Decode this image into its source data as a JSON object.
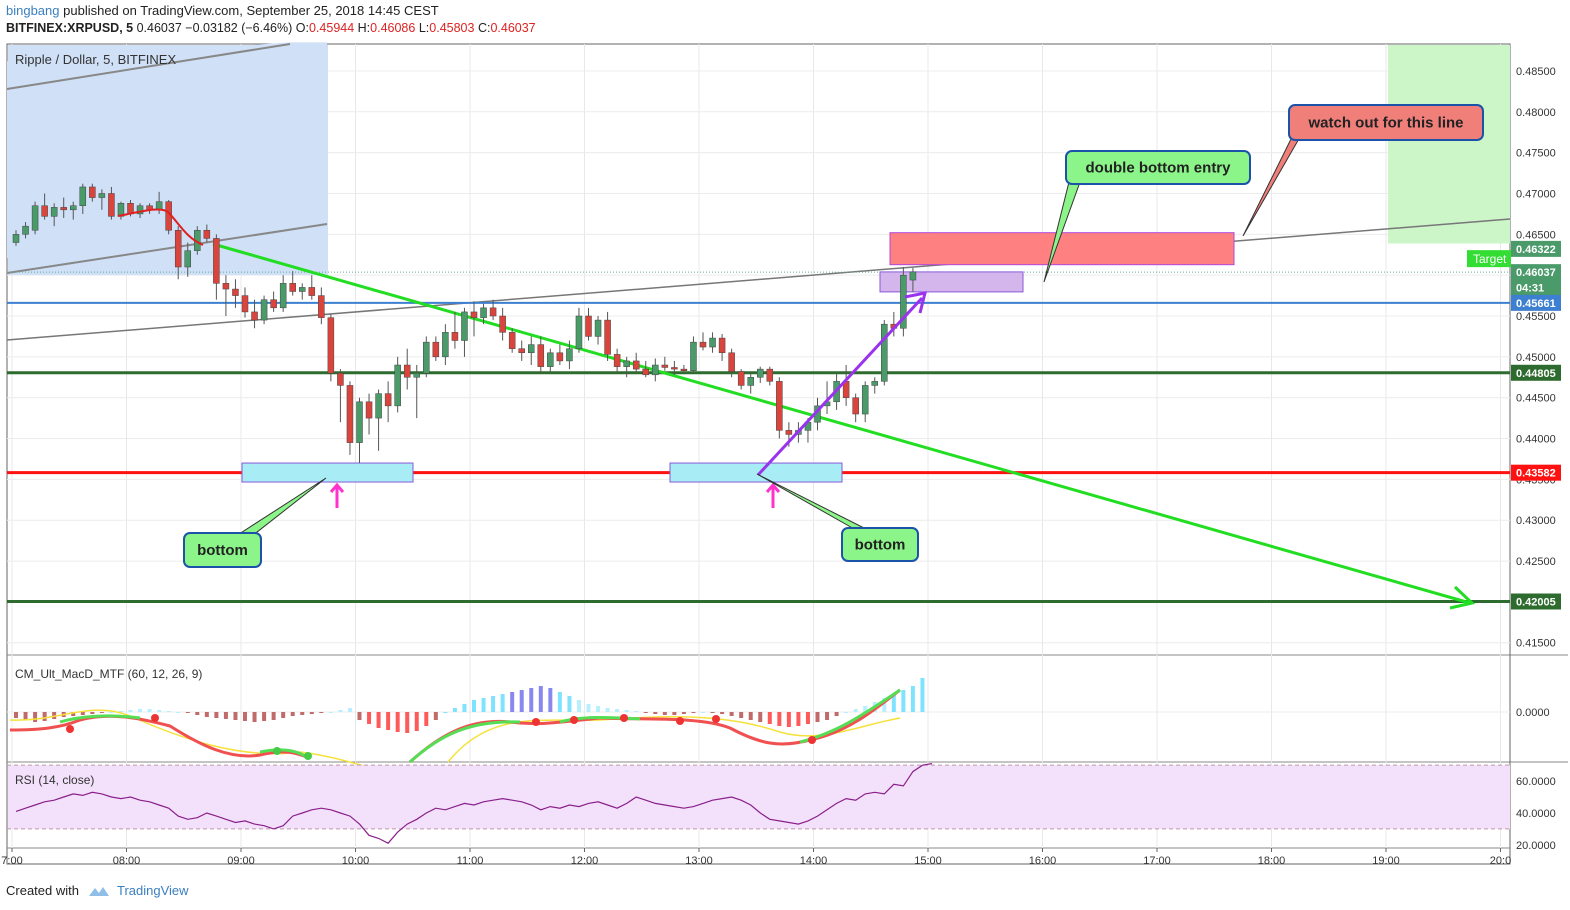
{
  "header": {
    "user": "bingbang",
    "published": "published on TradingView.com, September 25, 2018 14:45 CEST",
    "symbol": "BITFINEX:XRPUSD, 5",
    "last": "0.46037",
    "change": "−0.03182 (−6.46%)",
    "o_label": "O:",
    "o_val": "0.45944",
    "h_label": "H:",
    "h_val": "0.46086",
    "l_label": "L:",
    "l_val": "0.45803",
    "c_label": "C:",
    "c_val": "0.46037"
  },
  "footer": {
    "created": "Created with",
    "brand": "TradingView"
  },
  "colors": {
    "up": "#4a9a6a",
    "down": "#d9453c",
    "trendline": "#22dd22",
    "support_green": "#2e6b2e",
    "support_red": "#ff1111",
    "blue_line": "#3d7fd1",
    "purple": "#9933ee"
  },
  "chart_data": [
    {
      "type": "candlestick",
      "title": "Ripple / Dollar, 5, BITFINEX",
      "x_ticks": [
        "7:00",
        "08:00",
        "09:00",
        "10:00",
        "11:00",
        "12:00",
        "13:00",
        "14:00",
        "15:00",
        "16:00",
        "17:00",
        "18:00",
        "19:00",
        "20:0"
      ],
      "y_ticks": [
        "0.48500",
        "0.48000",
        "0.47500",
        "0.47000",
        "0.46500",
        "0.46000",
        "0.45500",
        "0.45000",
        "0.44500",
        "0.44000",
        "0.43500",
        "0.43000",
        "0.42500",
        "0.42000",
        "0.41500"
      ],
      "ylim": [
        0.4135,
        0.4883
      ],
      "candles": [
        [
          "7:00",
          0.464,
          0.4655,
          0.4636,
          0.465
        ],
        [
          "7:05",
          0.465,
          0.4665,
          0.4645,
          0.466
        ],
        [
          "7:10",
          0.4655,
          0.469,
          0.465,
          0.4685
        ],
        [
          "7:15",
          0.4685,
          0.47,
          0.4668,
          0.4672
        ],
        [
          "7:20",
          0.4672,
          0.4688,
          0.466,
          0.4683
        ],
        [
          "7:25",
          0.4683,
          0.4695,
          0.467,
          0.468
        ],
        [
          "7:30",
          0.468,
          0.469,
          0.4668,
          0.4685
        ],
        [
          "7:35",
          0.4685,
          0.4712,
          0.4675,
          0.4708
        ],
        [
          "7:40",
          0.4708,
          0.4712,
          0.469,
          0.4695
        ],
        [
          "7:45",
          0.4695,
          0.4705,
          0.468,
          0.47
        ],
        [
          "7:50",
          0.47,
          0.4708,
          0.4668,
          0.4672
        ],
        [
          "7:55",
          0.4672,
          0.469,
          0.4668,
          0.4688
        ],
        [
          "8:00",
          0.4688,
          0.4692,
          0.4672,
          0.4675
        ],
        [
          "8:05",
          0.4675,
          0.4688,
          0.467,
          0.4685
        ],
        [
          "8:10",
          0.4685,
          0.4688,
          0.4675,
          0.468
        ],
        [
          "8:15",
          0.468,
          0.4702,
          0.4675,
          0.469
        ],
        [
          "8:20",
          0.469,
          0.4692,
          0.465,
          0.4655
        ],
        [
          "8:25",
          0.4655,
          0.466,
          0.4595,
          0.461
        ],
        [
          "8:30",
          0.461,
          0.464,
          0.4598,
          0.463
        ],
        [
          "8:35",
          0.463,
          0.466,
          0.4625,
          0.4655
        ],
        [
          "8:40",
          0.4655,
          0.4662,
          0.464,
          0.4645
        ],
        [
          "8:45",
          0.4645,
          0.465,
          0.457,
          0.459
        ],
        [
          "8:50",
          0.459,
          0.46,
          0.455,
          0.4583
        ],
        [
          "8:55",
          0.4583,
          0.4595,
          0.456,
          0.4575
        ],
        [
          "9:00",
          0.4575,
          0.4585,
          0.4548,
          0.4555
        ],
        [
          "9:05",
          0.4555,
          0.457,
          0.4535,
          0.4545
        ],
        [
          "9:10",
          0.4545,
          0.4575,
          0.454,
          0.457
        ],
        [
          "9:15",
          0.457,
          0.458,
          0.4555,
          0.456
        ],
        [
          "9:20",
          0.456,
          0.46,
          0.4555,
          0.459
        ],
        [
          "9:25",
          0.459,
          0.4605,
          0.4575,
          0.458
        ],
        [
          "9:30",
          0.458,
          0.459,
          0.457,
          0.4585
        ],
        [
          "9:35",
          0.4585,
          0.46,
          0.457,
          0.4575
        ],
        [
          "9:40",
          0.4575,
          0.4585,
          0.454,
          0.4548
        ],
        [
          "9:45",
          0.4548,
          0.4552,
          0.447,
          0.448
        ],
        [
          "9:50",
          0.448,
          0.4485,
          0.442,
          0.4465
        ],
        [
          "9:55",
          0.4465,
          0.447,
          0.438,
          0.4395
        ],
        [
          "10:00",
          0.4395,
          0.445,
          0.437,
          0.4445
        ],
        [
          "10:05",
          0.4445,
          0.4455,
          0.4405,
          0.4425
        ],
        [
          "10:10",
          0.4425,
          0.446,
          0.4385,
          0.4455
        ],
        [
          "10:15",
          0.4455,
          0.447,
          0.442,
          0.444
        ],
        [
          "10:20",
          0.444,
          0.45,
          0.4432,
          0.449
        ],
        [
          "10:25",
          0.449,
          0.451,
          0.446,
          0.4475
        ],
        [
          "10:30",
          0.4475,
          0.449,
          0.4425,
          0.448
        ],
        [
          "10:35",
          0.448,
          0.4525,
          0.4475,
          0.4518
        ],
        [
          "10:40",
          0.4518,
          0.4525,
          0.4495,
          0.45
        ],
        [
          "10:45",
          0.45,
          0.454,
          0.449,
          0.453
        ],
        [
          "10:50",
          0.453,
          0.4555,
          0.451,
          0.452
        ],
        [
          "10:55",
          0.452,
          0.456,
          0.45,
          0.4555
        ],
        [
          "11:00",
          0.4555,
          0.4568,
          0.4525,
          0.4548
        ],
        [
          "11:05",
          0.4548,
          0.4565,
          0.454,
          0.456
        ],
        [
          "11:10",
          0.456,
          0.457,
          0.4545,
          0.455
        ],
        [
          "11:15",
          0.455,
          0.456,
          0.452,
          0.453
        ],
        [
          "11:20",
          0.453,
          0.4535,
          0.4505,
          0.451
        ],
        [
          "11:25",
          0.451,
          0.452,
          0.4495,
          0.4505
        ],
        [
          "11:30",
          0.4505,
          0.4525,
          0.449,
          0.4515
        ],
        [
          "11:35",
          0.4515,
          0.4525,
          0.448,
          0.4488
        ],
        [
          "11:40",
          0.4488,
          0.451,
          0.448,
          0.4505
        ],
        [
          "11:45",
          0.4505,
          0.4515,
          0.449,
          0.4495
        ],
        [
          "11:50",
          0.4495,
          0.452,
          0.4485,
          0.451
        ],
        [
          "11:55",
          0.451,
          0.456,
          0.4505,
          0.455
        ],
        [
          "12:00",
          0.455,
          0.456,
          0.452,
          0.4525
        ],
        [
          "12:05",
          0.4525,
          0.455,
          0.4515,
          0.4545
        ],
        [
          "12:10",
          0.4545,
          0.4555,
          0.4495,
          0.4503
        ],
        [
          "12:15",
          0.4503,
          0.451,
          0.448,
          0.4488
        ],
        [
          "12:20",
          0.4488,
          0.45,
          0.4475,
          0.4495
        ],
        [
          "12:25",
          0.4495,
          0.4505,
          0.448,
          0.4485
        ],
        [
          "12:30",
          0.4485,
          0.4495,
          0.4475,
          0.4478
        ],
        [
          "12:35",
          0.4478,
          0.4498,
          0.447,
          0.449
        ],
        [
          "12:40",
          0.449,
          0.45,
          0.4483,
          0.4487
        ],
        [
          "12:45",
          0.4487,
          0.4495,
          0.4478,
          0.4485
        ],
        [
          "12:50",
          0.4485,
          0.449,
          0.448,
          0.4483
        ],
        [
          "12:55",
          0.4483,
          0.4525,
          0.448,
          0.4518
        ],
        [
          "13:00",
          0.4518,
          0.453,
          0.4508,
          0.4512
        ],
        [
          "13:05",
          0.4512,
          0.453,
          0.4505,
          0.4523
        ],
        [
          "13:10",
          0.4523,
          0.4528,
          0.4495,
          0.4505
        ],
        [
          "13:15",
          0.4505,
          0.451,
          0.4475,
          0.4482
        ],
        [
          "13:20",
          0.4482,
          0.4485,
          0.446,
          0.4465
        ],
        [
          "13:25",
          0.4465,
          0.448,
          0.4455,
          0.4475
        ],
        [
          "13:30",
          0.4475,
          0.4488,
          0.4468,
          0.4485
        ],
        [
          "13:35",
          0.4485,
          0.4488,
          0.4465,
          0.447
        ],
        [
          "13:40",
          0.447,
          0.4475,
          0.44,
          0.441
        ],
        [
          "13:45",
          0.441,
          0.442,
          0.439,
          0.4405
        ],
        [
          "13:50",
          0.4405,
          0.442,
          0.4395,
          0.441
        ],
        [
          "13:55",
          0.441,
          0.4425,
          0.4395,
          0.442
        ],
        [
          "14:00",
          0.442,
          0.445,
          0.441,
          0.444
        ],
        [
          "14:05",
          0.444,
          0.447,
          0.443,
          0.4445
        ],
        [
          "14:10",
          0.4445,
          0.448,
          0.4435,
          0.447
        ],
        [
          "14:15",
          0.447,
          0.449,
          0.444,
          0.445
        ],
        [
          "14:20",
          0.445,
          0.4455,
          0.442,
          0.443
        ],
        [
          "14:25",
          0.443,
          0.447,
          0.442,
          0.4465
        ],
        [
          "14:30",
          0.4465,
          0.4475,
          0.4455,
          0.447
        ],
        [
          "14:35",
          0.447,
          0.4545,
          0.4465,
          0.454
        ],
        [
          "14:40",
          0.454,
          0.4555,
          0.4525,
          0.4535
        ],
        [
          "14:45",
          0.4535,
          0.461,
          0.4525,
          0.46
        ],
        [
          "14:50",
          0.4594,
          0.4609,
          0.458,
          0.4604
        ]
      ],
      "levels": [
        {
          "label": "0.46322",
          "color": "#4a9a6a",
          "y": 0.46322
        },
        {
          "label": "0.46037",
          "color": "#4a9a6a",
          "y": 0.46037
        },
        {
          "label": "04:31",
          "color": "#4a9a6a",
          "y": 0.4585
        },
        {
          "label": "0.45661",
          "color": "#3d7fd1",
          "y": 0.45661
        },
        {
          "label": "0.44805",
          "color": "#2e6b2e",
          "y": 0.44805
        },
        {
          "label": "0.43582",
          "color": "#ff1111",
          "y": 0.43582
        },
        {
          "label": "0.42005",
          "color": "#2e6b2e",
          "y": 0.42005
        }
      ],
      "target_label": "Target",
      "annotations": {
        "double_bottom_entry": "double bottom entry",
        "watch_out": "watch out for this line",
        "bottom_left": "bottom",
        "bottom_right": "bottom"
      }
    },
    {
      "type": "bar",
      "title": "CM_Ult_MacD_MTF (60, 12, 26, 9)",
      "y_ticks": [
        "0.0000"
      ]
    },
    {
      "type": "line",
      "title": "RSI (14, close)",
      "y_ticks": [
        "60.0000",
        "40.0000",
        "20.0000"
      ],
      "ylim": [
        18,
        72
      ],
      "values": [
        41,
        43,
        45,
        47,
        48,
        50,
        52,
        51,
        53,
        52,
        50,
        49,
        50,
        48,
        47,
        45,
        43,
        38,
        36,
        37,
        40,
        38,
        36,
        34,
        35,
        33,
        32,
        30,
        32,
        38,
        40,
        42,
        43,
        42,
        40,
        38,
        33,
        26,
        24,
        21,
        28,
        33,
        36,
        40,
        43,
        42,
        44,
        46,
        45,
        47,
        48,
        49,
        48,
        47,
        45,
        42,
        44,
        43,
        45,
        44,
        46,
        47,
        45,
        43,
        46,
        50,
        48,
        46,
        45,
        44,
        43,
        44,
        46,
        48,
        49,
        50,
        48,
        45,
        40,
        36,
        35,
        34,
        33,
        35,
        38,
        42,
        46,
        49,
        48,
        52,
        53,
        52,
        58,
        57,
        66,
        70,
        71
      ]
    }
  ]
}
